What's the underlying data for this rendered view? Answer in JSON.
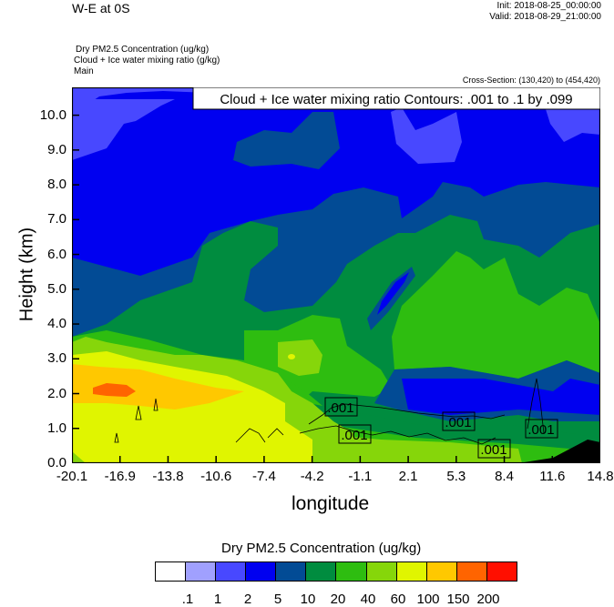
{
  "header": {
    "title": "W-E at 0S",
    "init": "Init: 2018-08-25_00:00:00",
    "valid": "Valid: 2018-08-29_21:00:00",
    "field1": "Dry PM2.5 Concentration   (ug/kg)",
    "field2": "Cloud + Ice water mixing ratio   (g/kg)",
    "field3": "Main",
    "cross_section": "Cross-Section: (130,420) to (454,420)"
  },
  "chart_data": {
    "type": "heatmap",
    "subtype": "filled contour with line contour overlay",
    "xlabel": "longitude",
    "ylabel": "Height (km)",
    "xticks": [
      "-20.1",
      "-16.9",
      "-13.8",
      "-10.6",
      "-7.4",
      "-4.2",
      "-1.1",
      "2.1",
      "5.3",
      "8.4",
      "11.6",
      "14.8"
    ],
    "yticks": [
      "0.0",
      "1.0",
      "2.0",
      "3.0",
      "4.0",
      "5.0",
      "6.0",
      "7.0",
      "8.0",
      "9.0",
      "10.0"
    ],
    "xlim": [
      -20.1,
      14.8
    ],
    "ylim": [
      0,
      10.8
    ],
    "contour_info": "Cloud + Ice water mixing ratio Contours: .001 to .1 by .099",
    "contour_labels": [
      ".001",
      ".001",
      ".001",
      ".001",
      ".001"
    ],
    "colorbar": {
      "title": "Dry PM2.5 Concentration  (ug/kg)",
      "levels": [
        ".1",
        "1",
        "2",
        "5",
        "10",
        "20",
        "40",
        "60",
        "100",
        "150",
        "200"
      ],
      "colors": [
        "#fefefe",
        "#a0a0fe",
        "#4848ff",
        "#0000f0",
        "#024b95",
        "#008c3f",
        "#2ebd10",
        "#86d60a",
        "#e0f500",
        "#ffc800",
        "#ff6400",
        "#ff0f00"
      ]
    },
    "terrain_color": "#000000"
  }
}
